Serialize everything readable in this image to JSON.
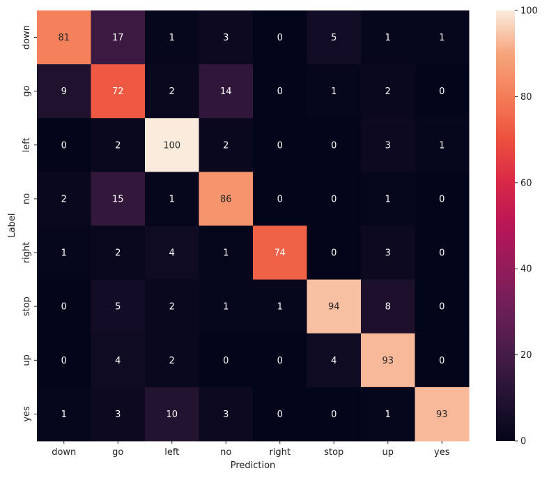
{
  "chart_data": {
    "type": "heatmap",
    "title": "",
    "xlabel": "Prediction",
    "ylabel": "Label",
    "x_categories": [
      "down",
      "go",
      "left",
      "no",
      "right",
      "stop",
      "up",
      "yes"
    ],
    "y_categories": [
      "down",
      "go",
      "left",
      "no",
      "right",
      "stop",
      "up",
      "yes"
    ],
    "values": [
      [
        81,
        17,
        1,
        3,
        0,
        5,
        1,
        1
      ],
      [
        9,
        72,
        2,
        14,
        0,
        1,
        2,
        0
      ],
      [
        0,
        2,
        100,
        2,
        0,
        0,
        3,
        1
      ],
      [
        2,
        15,
        1,
        86,
        0,
        0,
        1,
        0
      ],
      [
        1,
        2,
        4,
        1,
        74,
        0,
        3,
        0
      ],
      [
        0,
        5,
        2,
        1,
        1,
        94,
        8,
        0
      ],
      [
        0,
        4,
        2,
        0,
        0,
        4,
        93,
        0
      ],
      [
        1,
        3,
        10,
        3,
        0,
        0,
        1,
        93
      ]
    ],
    "colormap": "rocket",
    "colorbar": {
      "range": [
        0,
        100
      ],
      "ticks": [
        0,
        20,
        40,
        60,
        80,
        100
      ]
    },
    "annotations": true,
    "grid": false,
    "legend": "colorbar-right"
  }
}
